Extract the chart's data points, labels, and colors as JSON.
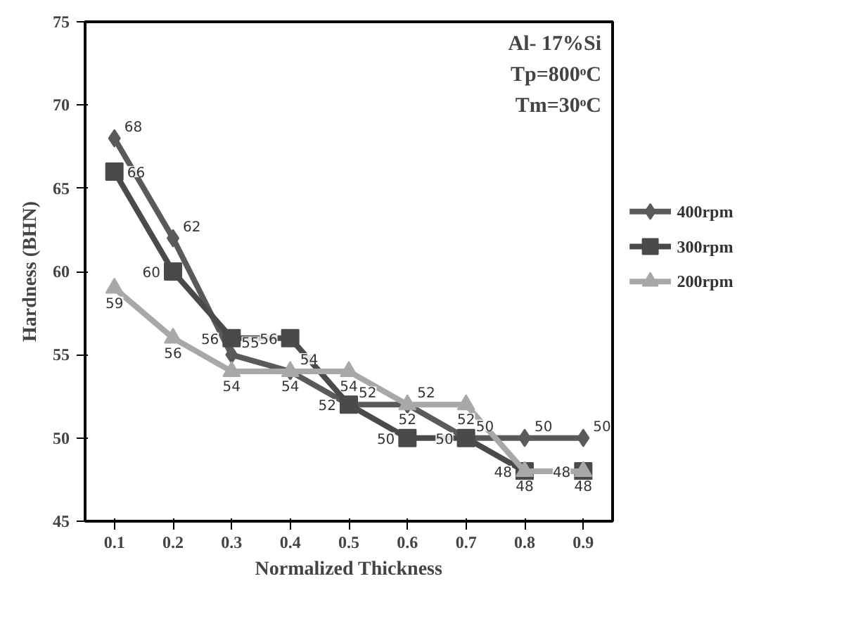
{
  "chart_data": {
    "type": "line",
    "xlabel": "Normalized Thickness",
    "ylabel": "Hardness (BHN)",
    "x": [
      0.1,
      0.2,
      0.3,
      0.4,
      0.5,
      0.6,
      0.7,
      0.8,
      0.9
    ],
    "series": [
      {
        "name": "400rpm",
        "color": "#5a5a5a",
        "marker": "diamond",
        "values": [
          68,
          62,
          55,
          54,
          52,
          52,
          50,
          50,
          50
        ]
      },
      {
        "name": "300rpm",
        "color": "#4a4a4a",
        "marker": "square",
        "values": [
          66,
          60,
          56,
          56,
          52,
          50,
          50,
          48,
          48
        ]
      },
      {
        "name": "200rpm",
        "color": "#a8a8a8",
        "marker": "triangle",
        "values": [
          59,
          56,
          54,
          54,
          54,
          52,
          52,
          48,
          48
        ]
      }
    ],
    "xlim": [
      0.05,
      0.95
    ],
    "xticks": [
      0.1,
      0.2,
      0.3,
      0.4,
      0.5,
      0.6,
      0.7,
      0.8,
      0.9
    ],
    "ylim": [
      45,
      75
    ],
    "yticks": [
      45,
      50,
      55,
      60,
      65,
      70,
      75
    ],
    "annotations": [
      "Al- 17%Si",
      "Tp=800ᵒC",
      "Tm=30ᵒC"
    ],
    "data_labels": true,
    "grid": false,
    "legend": "right",
    "line_style": "solid"
  }
}
